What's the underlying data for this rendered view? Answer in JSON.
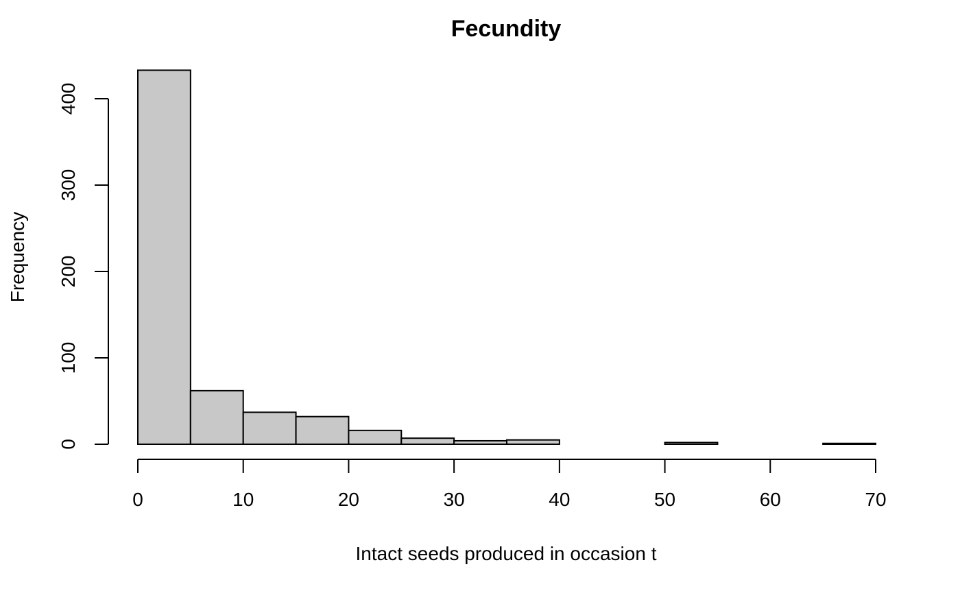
{
  "chart_data": {
    "type": "bar",
    "title": "Fecundity",
    "xlabel": "Intact seeds produced in occasion t",
    "ylabel": "Frequency",
    "bins": [
      {
        "from": 0,
        "to": 5,
        "count": 433
      },
      {
        "from": 5,
        "to": 10,
        "count": 62
      },
      {
        "from": 10,
        "to": 15,
        "count": 37
      },
      {
        "from": 15,
        "to": 20,
        "count": 32
      },
      {
        "from": 20,
        "to": 25,
        "count": 16
      },
      {
        "from": 25,
        "to": 30,
        "count": 7
      },
      {
        "from": 30,
        "to": 35,
        "count": 4
      },
      {
        "from": 35,
        "to": 40,
        "count": 5
      },
      {
        "from": 40,
        "to": 45,
        "count": 0
      },
      {
        "from": 45,
        "to": 50,
        "count": 0
      },
      {
        "from": 50,
        "to": 55,
        "count": 2
      },
      {
        "from": 55,
        "to": 60,
        "count": 0
      },
      {
        "from": 60,
        "to": 65,
        "count": 0
      },
      {
        "from": 65,
        "to": 70,
        "count": 1
      }
    ],
    "xlim": [
      0,
      70
    ],
    "ylim": [
      0,
      400
    ],
    "xticks": [
      0,
      10,
      20,
      30,
      40,
      50,
      60,
      70
    ],
    "yticks": [
      0,
      100,
      200,
      300,
      400
    ],
    "bar_color": "#c8c8c8",
    "grid": false
  }
}
